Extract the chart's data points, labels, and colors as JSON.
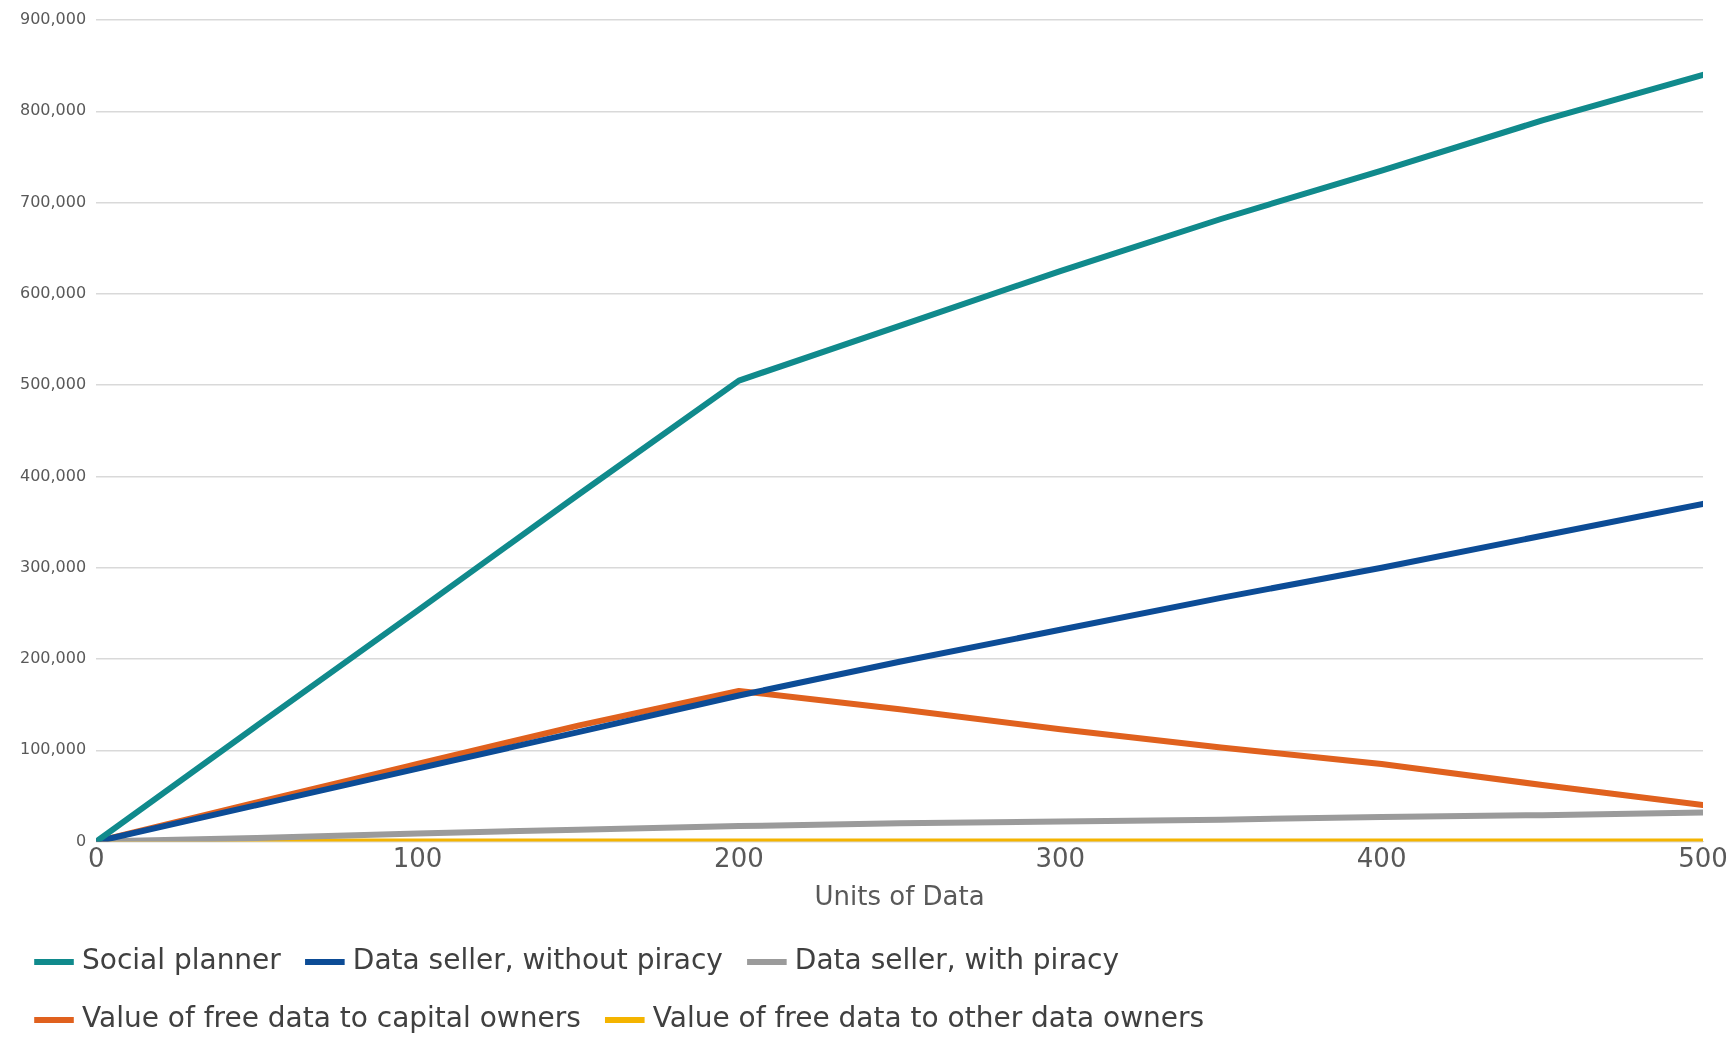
{
  "chart_data": {
    "type": "line",
    "xlabel": "Units of Data",
    "x": [
      0,
      50,
      100,
      150,
      200,
      250,
      300,
      350,
      400,
      450,
      500
    ],
    "series": [
      {
        "name": "Social planner",
        "color": "#108a8c",
        "values": [
          0,
          127000,
          253000,
          380000,
          505000,
          565000,
          625000,
          682000,
          735000,
          790000,
          840000
        ]
      },
      {
        "name": "Data seller, without piracy",
        "color": "#0c4c96",
        "values": [
          0,
          40000,
          80000,
          120000,
          160000,
          197000,
          232000,
          267000,
          300000,
          335000,
          370000
        ]
      },
      {
        "name": "Data seller, with piracy",
        "color": "#9b9b9b",
        "values": [
          0,
          4000,
          9000,
          13000,
          17000,
          20000,
          22000,
          24000,
          27000,
          29000,
          32000
        ]
      },
      {
        "name": "Value of free data to capital owners",
        "color": "#e0611e",
        "values": [
          0,
          43000,
          85000,
          127000,
          165000,
          145000,
          123000,
          103000,
          85000,
          62000,
          40000
        ]
      },
      {
        "name": "Value of free data to other data owners",
        "color": "#f4b400",
        "values": [
          0,
          0,
          0,
          0,
          0,
          0,
          0,
          0,
          0,
          0,
          0
        ]
      }
    ],
    "xlim": [
      0,
      500
    ],
    "xticks": [
      0,
      100,
      200,
      300,
      400,
      500
    ],
    "ylim": [
      0,
      900000
    ],
    "yticks": [
      0,
      {
        "value": 100000,
        "label": "100,000"
      },
      {
        "value": 200000,
        "label": "200,000"
      },
      {
        "value": 300000,
        "label": "300,000"
      },
      {
        "value": 400000,
        "label": "400,000"
      },
      {
        "value": 500000,
        "label": "500,000"
      },
      {
        "value": 600000,
        "label": "600,000"
      },
      {
        "value": 700000,
        "label": "700,000"
      },
      {
        "value": 800000,
        "label": "800,000"
      },
      {
        "value": 900000,
        "label": "900,000"
      }
    ],
    "grid": "y",
    "legend": "bottom",
    "marker": "none",
    "line_style": "solid"
  }
}
